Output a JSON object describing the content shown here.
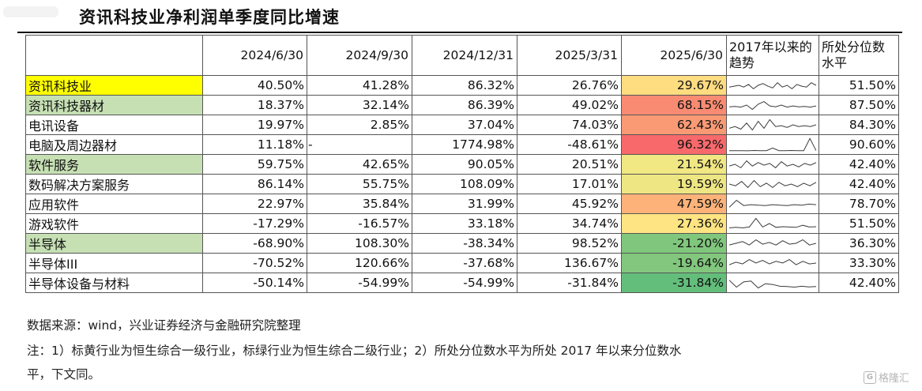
{
  "title": "资讯科技业净利润单季度同比增速",
  "columns": [
    "",
    "2024/6/30",
    "2024/9/30",
    "2024/12/31",
    "2025/3/31",
    "2025/6/30",
    "2017年以来的趋势",
    "所处分位数水平"
  ],
  "colors": {
    "level1_highlight": "#ffff00",
    "level2_highlight": "#c6e0b4",
    "heat_low": "#63be7b",
    "heat_mid": "#ffeb84",
    "heat_high": "#f8696b"
  },
  "chart_data": {
    "type": "table",
    "title": "资讯科技业净利润单季度同比增速",
    "rows": [
      {
        "name": "资讯科技业",
        "level": 1,
        "values": [
          "40.50%",
          "41.28%",
          "86.32%",
          "26.76%",
          "29.67%"
        ],
        "latest": 29.67,
        "percentile": "51.50%",
        "heat": "#fedc80"
      },
      {
        "name": "资讯科技器材",
        "level": 2,
        "values": [
          "18.37%",
          "32.14%",
          "86.39%",
          "49.02%",
          "68.15%"
        ],
        "latest": 68.15,
        "percentile": "87.50%",
        "heat": "#f98b72"
      },
      {
        "name": "电讯设备",
        "level": 0,
        "values": [
          "19.97%",
          "2.85%",
          "37.04%",
          "74.03%",
          "62.43%"
        ],
        "latest": 62.43,
        "percentile": "84.30%",
        "heat": "#fa9a75"
      },
      {
        "name": "电脑及周边器材",
        "level": 0,
        "values": [
          "11.18%",
          "-",
          "1774.98%",
          "-48.61%",
          "96.32%"
        ],
        "latest": 96.32,
        "percentile": "90.60%",
        "heat": "#f8696b"
      },
      {
        "name": "软件服务",
        "level": 2,
        "values": [
          "59.75%",
          "42.65%",
          "90.05%",
          "20.51%",
          "21.54%"
        ],
        "latest": 21.54,
        "percentile": "42.40%",
        "heat": "#f1e783"
      },
      {
        "name": "数码解决方案服务",
        "level": 0,
        "values": [
          "86.14%",
          "55.75%",
          "108.09%",
          "17.01%",
          "19.59%"
        ],
        "latest": 19.59,
        "percentile": "42.40%",
        "heat": "#eee683"
      },
      {
        "name": "应用软件",
        "level": 0,
        "values": [
          "22.97%",
          "35.84%",
          "31.99%",
          "45.92%",
          "47.59%"
        ],
        "latest": 47.59,
        "percentile": "78.70%",
        "heat": "#fcb279"
      },
      {
        "name": "游戏软件",
        "level": 0,
        "values": [
          "-17.29%",
          "-16.57%",
          "33.18%",
          "34.74%",
          "27.36%"
        ],
        "latest": 27.36,
        "percentile": "51.50%",
        "heat": "#fee482"
      },
      {
        "name": "半导体",
        "level": 2,
        "values": [
          "-68.90%",
          "108.30%",
          "-38.34%",
          "98.52%",
          "-21.20%"
        ],
        "latest": -21.2,
        "percentile": "36.30%",
        "heat": "#80c77d"
      },
      {
        "name": "半导体III",
        "level": 0,
        "values": [
          "-70.52%",
          "120.66%",
          "-37.68%",
          "136.67%",
          "-19.64%"
        ],
        "latest": -19.64,
        "percentile": "33.30%",
        "heat": "#82c77d"
      },
      {
        "name": "半导体设备与材料",
        "level": 0,
        "values": [
          "-50.14%",
          "-54.99%",
          "-54.99%",
          "-31.84%",
          "-31.84%"
        ],
        "latest": -31.84,
        "percentile": "42.40%",
        "heat": "#63be7b"
      }
    ]
  },
  "notes": {
    "source": "数据来源：wind，兴业证券经济与金融研究院整理",
    "note_line1": "注：1）标黄行业为恒生综合一级行业，标绿行业为恒生综合二级行业；2）所处分位数水平为所处 2017 年以来分位数水",
    "note_line2": "平，下文同。"
  },
  "watermark": {
    "icon": "G",
    "text": "格隆汇"
  }
}
